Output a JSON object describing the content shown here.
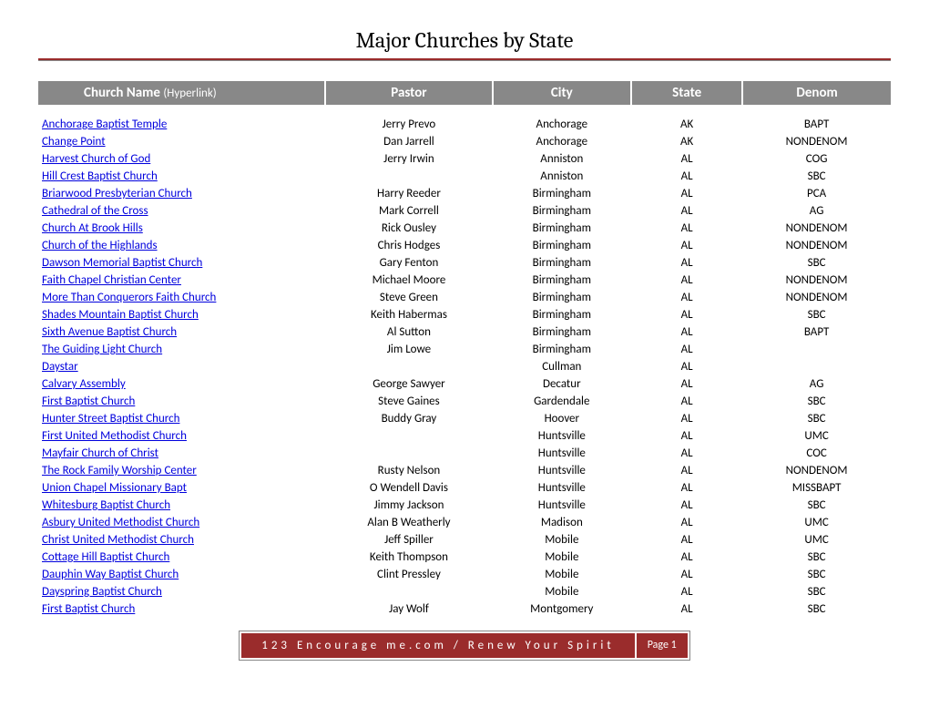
{
  "title": "Major Churches by State",
  "columns": {
    "name": "Church Name",
    "name_sub": "(Hyperlink)",
    "pastor": "Pastor",
    "city": "City",
    "state": "State",
    "denom": "Denom"
  },
  "colors": {
    "accent": "#9a2c2c",
    "header_bg": "#888888",
    "header_text": "#ffffff",
    "link": "#0000dd"
  },
  "footer": {
    "text": "123 Encourage me.com / Renew Your Spirit",
    "page": "Page 1"
  },
  "rows": [
    {
      "name": "Anchorage Baptist Temple",
      "pastor": "Jerry Prevo",
      "city": "Anchorage",
      "state": "AK",
      "denom": "BAPT"
    },
    {
      "name": "Change Point",
      "pastor": "Dan Jarrell",
      "city": "Anchorage",
      "state": "AK",
      "denom": "NONDENOM"
    },
    {
      "name": "Harvest Church of God",
      "pastor": "Jerry Irwin",
      "city": "Anniston",
      "state": "AL",
      "denom": "COG"
    },
    {
      "name": "Hill Crest Baptist Church",
      "pastor": "",
      "city": "Anniston",
      "state": "AL",
      "denom": "SBC"
    },
    {
      "name": "Briarwood Presbyterian Church",
      "pastor": "Harry Reeder",
      "city": "Birmingham",
      "state": "AL",
      "denom": "PCA"
    },
    {
      "name": "Cathedral of the Cross",
      "pastor": "Mark Correll",
      "city": "Birmingham",
      "state": "AL",
      "denom": "AG"
    },
    {
      "name": "Church At Brook Hills",
      "pastor": "Rick Ousley",
      "city": "Birmingham",
      "state": "AL",
      "denom": "NONDENOM"
    },
    {
      "name": "Church of the Highlands",
      "pastor": "Chris Hodges",
      "city": "Birmingham",
      "state": "AL",
      "denom": "NONDENOM"
    },
    {
      "name": "Dawson Memorial Baptist Church",
      "pastor": "Gary Fenton",
      "city": "Birmingham",
      "state": "AL",
      "denom": "SBC"
    },
    {
      "name": "Faith Chapel Christian Center",
      "pastor": "Michael Moore",
      "city": "Birmingham",
      "state": "AL",
      "denom": "NONDENOM"
    },
    {
      "name": "More Than Conquerors Faith Church",
      "pastor": "Steve Green",
      "city": "Birmingham",
      "state": "AL",
      "denom": "NONDENOM"
    },
    {
      "name": "Shades Mountain Baptist Church",
      "pastor": "Keith Habermas",
      "city": "Birmingham",
      "state": "AL",
      "denom": "SBC"
    },
    {
      "name": "Sixth Avenue Baptist Church",
      "pastor": "Al Sutton",
      "city": "Birmingham",
      "state": "AL",
      "denom": "BAPT"
    },
    {
      "name": "The Guiding Light Church",
      "pastor": "Jim Lowe",
      "city": "Birmingham",
      "state": "AL",
      "denom": ""
    },
    {
      "name": "Daystar",
      "pastor": "",
      "city": "Cullman",
      "state": "AL",
      "denom": ""
    },
    {
      "name": "Calvary Assembly",
      "pastor": "George Sawyer",
      "city": "Decatur",
      "state": "AL",
      "denom": "AG"
    },
    {
      "name": "First Baptist Church",
      "pastor": "Steve Gaines",
      "city": "Gardendale",
      "state": "AL",
      "denom": "SBC"
    },
    {
      "name": "Hunter Street Baptist Church",
      "pastor": "Buddy Gray",
      "city": "Hoover",
      "state": "AL",
      "denom": "SBC"
    },
    {
      "name": "First United Methodist Church",
      "pastor": "",
      "city": "Huntsville",
      "state": "AL",
      "denom": "UMC"
    },
    {
      "name": "Mayfair Church of Christ",
      "pastor": "",
      "city": "Huntsville",
      "state": "AL",
      "denom": "COC"
    },
    {
      "name": "The Rock Family Worship Center",
      "pastor": "Rusty Nelson",
      "city": "Huntsville",
      "state": "AL",
      "denom": "NONDENOM"
    },
    {
      "name": "Union Chapel Missionary Bapt",
      "pastor": "O Wendell Davis",
      "city": "Huntsville",
      "state": "AL",
      "denom": "MISSBAPT"
    },
    {
      "name": "Whitesburg Baptist Church",
      "pastor": "Jimmy Jackson",
      "city": "Huntsville",
      "state": "AL",
      "denom": "SBC"
    },
    {
      "name": "Asbury United Methodist Church",
      "pastor": "Alan B Weatherly",
      "city": "Madison",
      "state": "AL",
      "denom": "UMC"
    },
    {
      "name": "Christ United Methodist Church",
      "pastor": "Jeff Spiller",
      "city": "Mobile",
      "state": "AL",
      "denom": "UMC"
    },
    {
      "name": "Cottage Hill Baptist Church",
      "pastor": "Keith Thompson",
      "city": "Mobile",
      "state": "AL",
      "denom": "SBC"
    },
    {
      "name": "Dauphin Way Baptist Church",
      "pastor": "Clint Pressley",
      "city": "Mobile",
      "state": "AL",
      "denom": "SBC"
    },
    {
      "name": "Dayspring Baptist Church",
      "pastor": "",
      "city": "Mobile",
      "state": "AL",
      "denom": "SBC"
    },
    {
      "name": "First Baptist Church",
      "pastor": "Jay Wolf",
      "city": "Montgomery",
      "state": "AL",
      "denom": "SBC"
    }
  ]
}
